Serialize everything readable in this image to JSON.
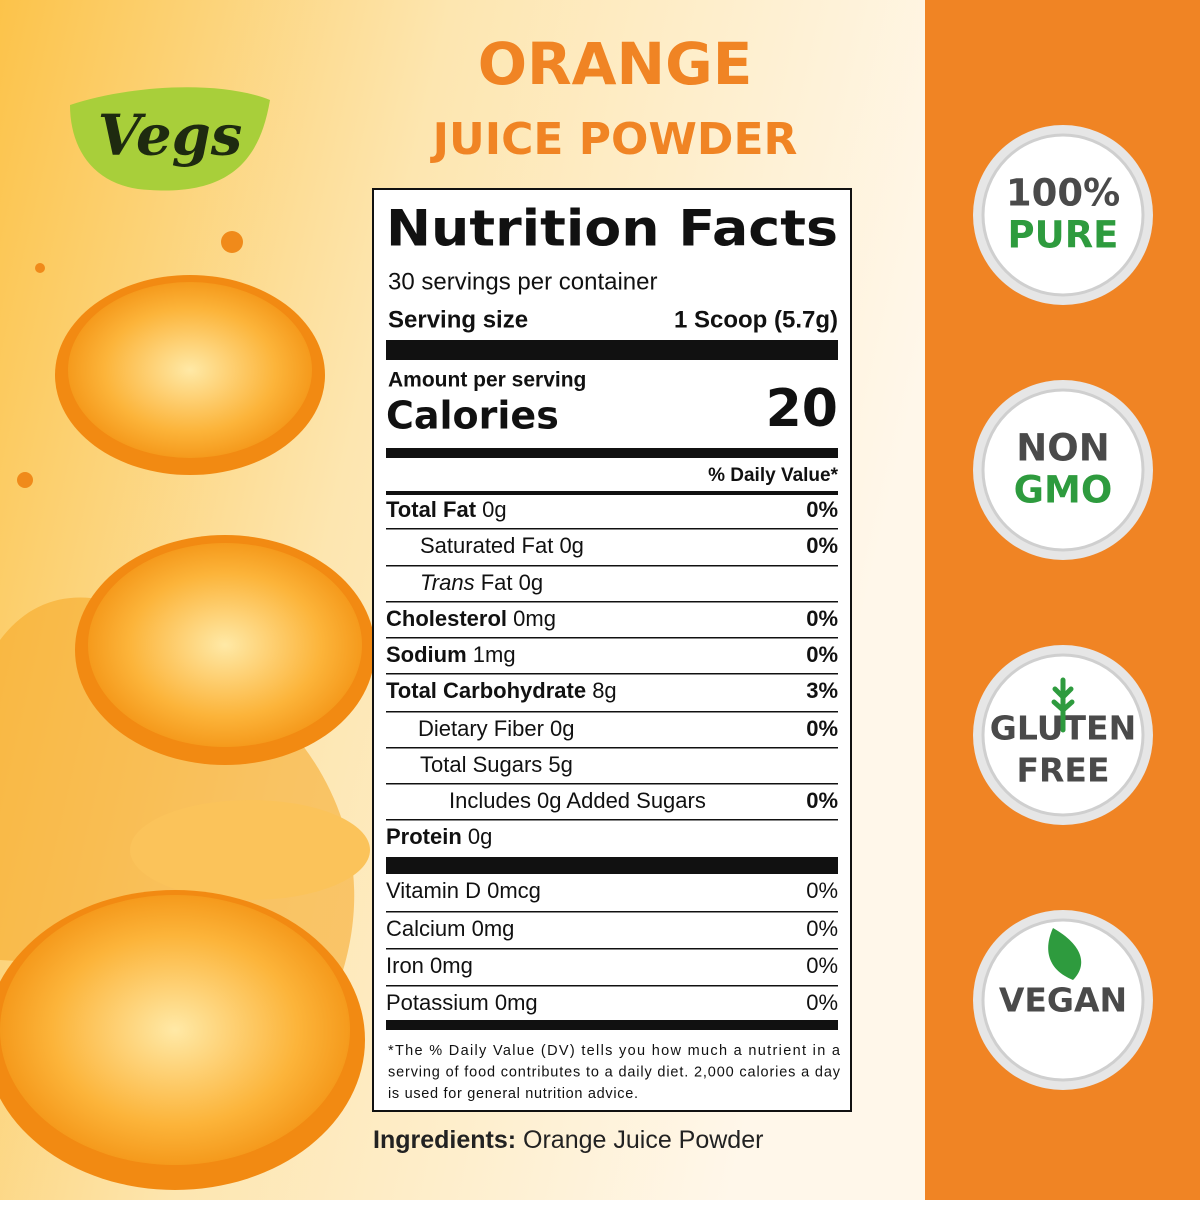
{
  "brand": "Vegs",
  "header": {
    "title": "ORANGE",
    "subtitle": "JUICE POWDER"
  },
  "nutrition": {
    "title": "Nutrition Facts",
    "servings": "30 servings per container",
    "serving_size_label": "Serving size",
    "serving_size": "1 Scoop (5.7g)",
    "amount_label": "Amount per serving",
    "calories_label": "Calories",
    "calories": 20,
    "dv_header": "% Daily Value*",
    "nutrients": [
      {
        "name": "Total Fat",
        "amount": "0g",
        "dv": "0%"
      },
      {
        "name": "Saturated Fat",
        "amount": "0g",
        "dv": "0%"
      },
      {
        "prefix": "Trans",
        "name": "Fat",
        "amount": "0g"
      },
      {
        "name": "Cholesterol",
        "amount": "0mg",
        "dv": "0%"
      },
      {
        "name": "Sodium",
        "amount": "1mg",
        "dv": "0%"
      },
      {
        "name": "Total Carbohydrate",
        "amount": "8g",
        "dv": "3%"
      },
      {
        "name": "Dietary Fiber",
        "amount": "0g",
        "dv": "0%"
      },
      {
        "name": "Total Sugars",
        "amount": "5g"
      },
      {
        "name": "Includes 0g Added Sugars",
        "dv": "0%"
      },
      {
        "name": "Protein",
        "amount": "0g"
      }
    ],
    "vitamins": [
      {
        "name": "Vitamin D",
        "amount": "0mcg",
        "dv": "0%"
      },
      {
        "name": "Calcium",
        "amount": "0mg",
        "dv": "0%"
      },
      {
        "name": "Iron",
        "amount": "0mg",
        "dv": "0%"
      },
      {
        "name": "Potassium",
        "amount": "0mg",
        "dv": "0%"
      }
    ],
    "footnote": [
      "*The % Daily Value (DV) tells you how much a nutrient in a",
      "serving of food contributes to a daily diet. 2,000 calories a day",
      "is used for general nutrition advice."
    ]
  },
  "ingredients": {
    "label": "Ingredients:",
    "text": "Orange Juice Powder"
  },
  "badges": [
    {
      "line1": "100%",
      "line2": "PURE"
    },
    {
      "line1": "NON",
      "line2": "GMO"
    },
    {
      "line1": "GLUTEN",
      "line2": "FREE"
    },
    {
      "line1": "VEGAN"
    }
  ]
}
